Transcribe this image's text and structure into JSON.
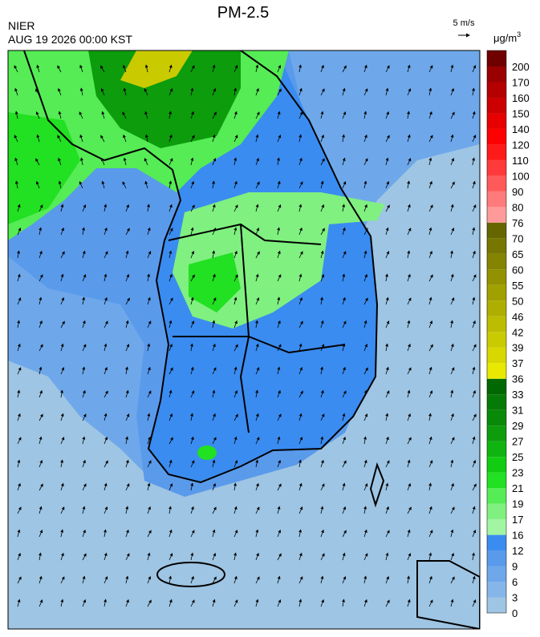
{
  "header": {
    "title": "PM-2.5",
    "agency": "NIER",
    "timestamp": "AUG 19 2026 00:00 KST"
  },
  "wind_scale": {
    "label": "5 m/s"
  },
  "colorbar": {
    "unit": "μg/m",
    "unit_superscript": "3",
    "levels": [
      0,
      3,
      6,
      9,
      12,
      16,
      17,
      19,
      21,
      23,
      25,
      27,
      29,
      31,
      33,
      36,
      37,
      39,
      42,
      46,
      50,
      55,
      60,
      65,
      70,
      76,
      80,
      90,
      100,
      110,
      120,
      140,
      150,
      160,
      170,
      200
    ],
    "colors": [
      "#9ec5e3",
      "#86b6e9",
      "#6ea8ea",
      "#5a9aeb",
      "#3a8cf0",
      "#a2f5a2",
      "#80f080",
      "#55ec55",
      "#22e022",
      "#12cc12",
      "#10b410",
      "#0c9c0c",
      "#088a08",
      "#067a06",
      "#006800",
      "#e8e800",
      "#d8d800",
      "#caca00",
      "#bcbc00",
      "#aeae00",
      "#a0a000",
      "#929200",
      "#848400",
      "#767600",
      "#666600",
      "#ff9a9a",
      "#ff7a7a",
      "#ff5a5a",
      "#ff3a3a",
      "#ff1a1a",
      "#ff0000",
      "#e60000",
      "#cc0000",
      "#b40000",
      "#9a0000",
      "#700000"
    ]
  }
}
